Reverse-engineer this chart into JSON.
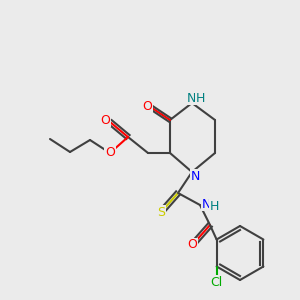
{
  "bg_color": "#ebebeb",
  "bond_color": "#404040",
  "bond_width": 1.5,
  "atom_colors": {
    "O": "#ff0000",
    "N": "#0000ff",
    "NH": "#008080",
    "S": "#cccc00",
    "Cl": "#00aa00",
    "C": "#404040"
  },
  "font_size": 9
}
